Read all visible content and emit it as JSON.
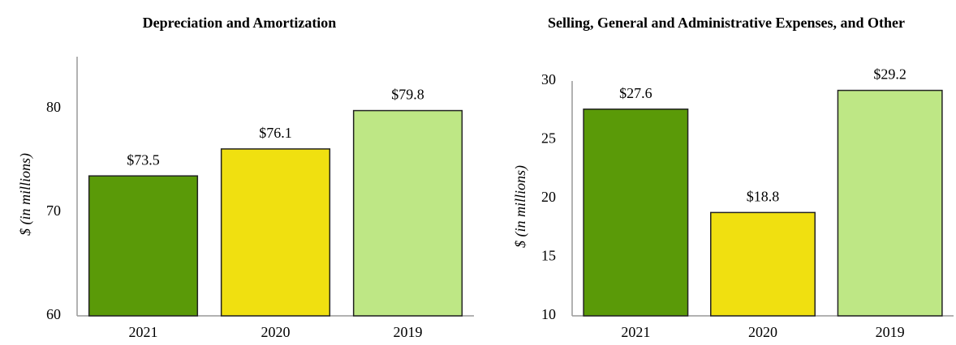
{
  "chart_data": [
    {
      "type": "bar",
      "title": "Depreciation and Amortization",
      "ylabel": "$ (in millions)",
      "categories": [
        "2021",
        "2020",
        "2019"
      ],
      "values": [
        73.5,
        76.1,
        79.8
      ],
      "value_labels": [
        "$73.5",
        "$76.1",
        "$79.8"
      ],
      "colors": [
        "#5a9a08",
        "#f0e010",
        "#bee785"
      ],
      "ylim": [
        60,
        85
      ],
      "yticks": [
        60,
        70,
        80
      ],
      "grid": false
    },
    {
      "type": "bar",
      "title": "Selling, General and Administrative Expenses, and Other",
      "ylabel": "$ (in millions)",
      "categories": [
        "2021",
        "2020",
        "2019"
      ],
      "values": [
        27.6,
        18.8,
        29.2
      ],
      "value_labels": [
        "$27.6",
        "$18.8",
        "$29.2"
      ],
      "colors": [
        "#5a9a08",
        "#f0e010",
        "#bee785"
      ],
      "ylim": [
        10,
        30
      ],
      "yticks": [
        10,
        15,
        20,
        25,
        30
      ],
      "grid": false
    }
  ]
}
